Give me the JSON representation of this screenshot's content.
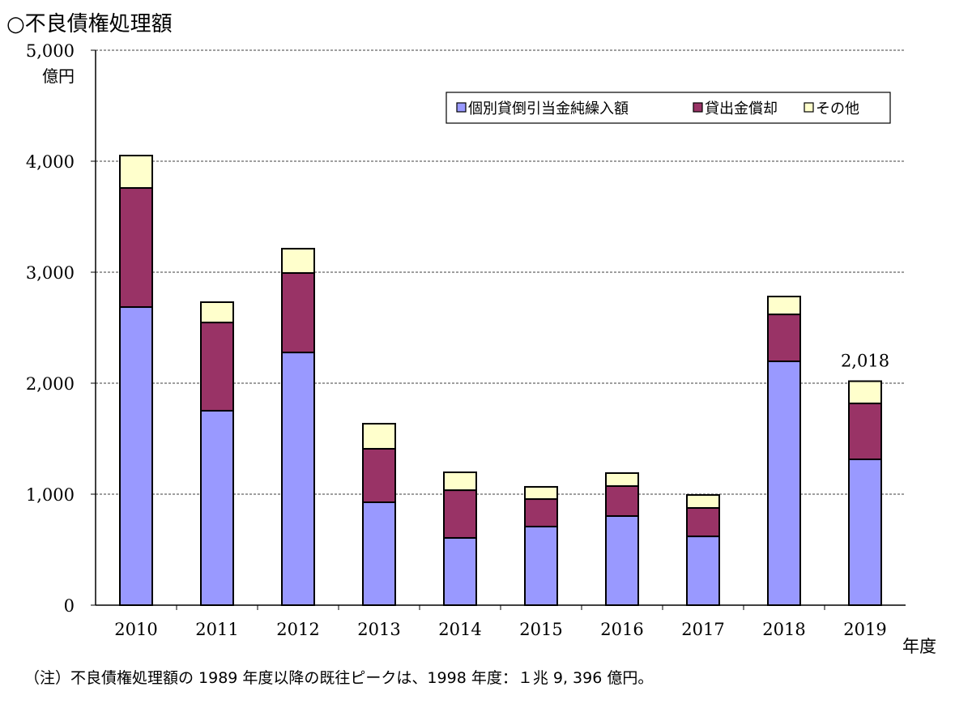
{
  "chart_data": {
    "type": "bar",
    "stacked": true,
    "title": "○不良債権処理額",
    "ylabel": "億円",
    "xlabel": "年度",
    "ylim": [
      0,
      5000
    ],
    "yticks": [
      0,
      1000,
      2000,
      3000,
      4000,
      5000
    ],
    "ytick_labels": [
      "0",
      "1,000",
      "2,000",
      "3,000",
      "4,000",
      "5,000"
    ],
    "grid": true,
    "legend_position": "top-right",
    "categories": [
      "2010",
      "2011",
      "2012",
      "2013",
      "2014",
      "2015",
      "2016",
      "2017",
      "2018",
      "2019"
    ],
    "series": [
      {
        "name": "個別貸倒引当金純繰入額",
        "color": "#9999FF",
        "values": [
          2686,
          1752,
          2277,
          927,
          606,
          708,
          803,
          620,
          2197,
          1314
        ]
      },
      {
        "name": "貸出金償却",
        "color": "#993366",
        "values": [
          1073,
          795,
          716,
          482,
          430,
          248,
          270,
          256,
          423,
          504
        ]
      },
      {
        "name": "その他",
        "color": "#FFFFCC",
        "values": [
          292,
          183,
          219,
          226,
          161,
          110,
          117,
          117,
          161,
          200
        ]
      }
    ],
    "annotations": [
      {
        "category": "2019",
        "text": "2,018"
      }
    ],
    "note": "（注）不良債権処理額の 1989 年度以降の既往ピークは、1998 年度：１兆 9, 396 億円。"
  }
}
